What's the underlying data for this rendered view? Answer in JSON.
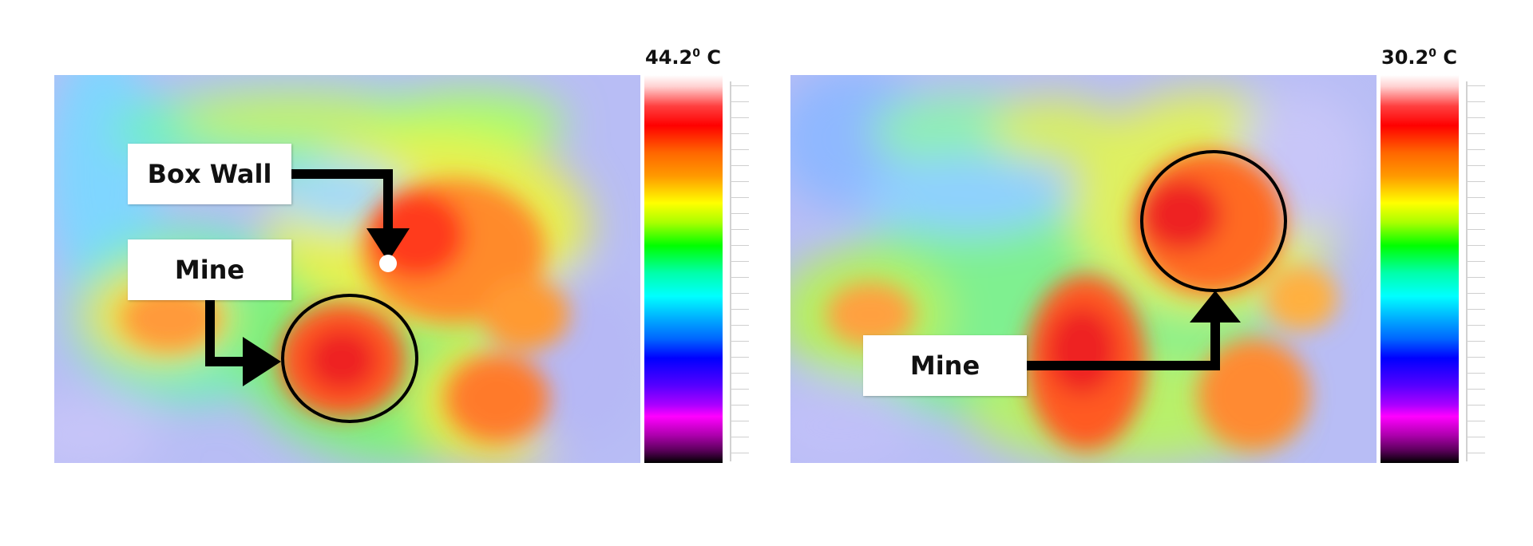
{
  "left_panel": {
    "max_temp": "44.2",
    "degree_mark": "0",
    "unit": " C",
    "callouts": {
      "box_wall": "Box Wall",
      "mine": "Mine"
    }
  },
  "right_panel": {
    "max_temp": "30.2",
    "degree_mark": "0",
    "unit": " C",
    "callouts": {
      "mine": "Mine"
    }
  },
  "colorbar_gradient": [
    "#ffffff",
    "#ff0000",
    "#ff9900",
    "#ffff00",
    "#00ff00",
    "#00ffff",
    "#0000ff",
    "#ff00ff",
    "#000000"
  ]
}
